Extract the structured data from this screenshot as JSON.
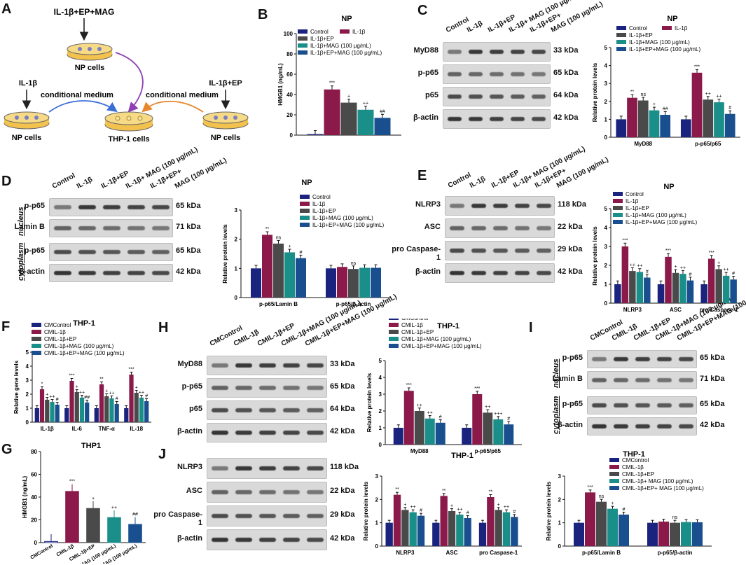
{
  "colors": {
    "control": "#1a237e",
    "il1b": "#8b1a4a",
    "ep": "#4a4a4a",
    "mag": "#1a8f8a",
    "epmag": "#1a4f8f"
  },
  "panels": {
    "A": "A",
    "B": "B",
    "C": "C",
    "D": "D",
    "E": "E",
    "F": "F",
    "G": "G",
    "H": "H",
    "I": "I",
    "J": "J"
  },
  "diagram": {
    "top_label": "IL-1β+EP+MAG",
    "top_cells": "NP cells",
    "left_label": "IL-1β",
    "right_label": "IL-1β+EP",
    "left_cells": "NP cells",
    "right_cells": "NP cells",
    "center_cells": "THP-1 cells",
    "cm_left": "conditional medium",
    "cm_right": "conditional medium"
  },
  "lanes_np": [
    "Control",
    "IL-1β",
    "IL-1β+EP",
    "IL-1β+ MAG (100 μg/mL)",
    "IL-1β+EP+",
    "MAG (100 μg/mL)"
  ],
  "lanes_thp": [
    "CMControl",
    "CMIL-1β",
    "CMIL-1β+EP",
    "CMIL-1β+MAG (100 μg/mL)",
    "CMIL-1β+EP+MAG (100 μg/mL)"
  ],
  "blots": {
    "C": [
      {
        "name": "MyD88",
        "kda": "33 kDa"
      },
      {
        "name": "p-p65",
        "kda": "65 kDa"
      },
      {
        "name": "p65",
        "kda": "64 kDa"
      },
      {
        "name": "β-actin",
        "kda": "42 kDa"
      }
    ],
    "D": [
      {
        "name": "p-p65",
        "kda": "65 kDa"
      },
      {
        "name": "Lamin B",
        "kda": "71 kDa"
      },
      {
        "name": "p-p65",
        "kda": "65 kDa"
      },
      {
        "name": "β-actin",
        "kda": "42 kDa"
      }
    ],
    "D_groups": [
      "nucleus",
      "cytoplasm"
    ],
    "E": [
      {
        "name": "NLRP3",
        "kda": "118 kDa"
      },
      {
        "name": "ASC",
        "kda": "22 kDa"
      },
      {
        "name": "pro Caspase-1",
        "kda": "29 kDa"
      },
      {
        "name": "β-actin",
        "kda": "42 kDa"
      }
    ],
    "H": [
      {
        "name": "MyD88",
        "kda": "33 kDa"
      },
      {
        "name": "p-p65",
        "kda": "65 kDa"
      },
      {
        "name": "p65",
        "kda": "64 kDa"
      },
      {
        "name": "β-actin",
        "kda": "42 kDa"
      }
    ],
    "I": [
      {
        "name": "p-p65",
        "kda": "65 kDa"
      },
      {
        "name": "Lamin B",
        "kda": "71 kDa"
      },
      {
        "name": "p-p65",
        "kda": "65 kDa"
      },
      {
        "name": "β-actin",
        "kda": "42 kDa"
      }
    ],
    "I_groups": [
      "nucleus",
      "cytoplasm"
    ],
    "J": [
      {
        "name": "NLRP3",
        "kda": "118 kDa"
      },
      {
        "name": "ASC",
        "kda": "22 kDa"
      },
      {
        "name": "pro Caspase-1",
        "kda": "29 kDa"
      },
      {
        "name": "β-actin",
        "kda": "42 kDa"
      }
    ]
  },
  "chart_data": [
    {
      "id": "B",
      "type": "bar",
      "title": "NP",
      "ylabel": "HMGB1 (ng/mL)",
      "ylim": [
        0,
        100
      ],
      "yticks": [
        0,
        20,
        40,
        60,
        80,
        100
      ],
      "categories": [
        ""
      ],
      "legend": [
        "Control",
        "IL-1β",
        "IL-1β+EP",
        "IL-1β+MAG (100 μg/mL)",
        "IL-1β+EP+MAG (100 μg/mL)"
      ],
      "series": [
        {
          "name": "Control",
          "values": [
            1
          ]
        },
        {
          "name": "IL-1β",
          "values": [
            45
          ]
        },
        {
          "name": "IL-1β+EP",
          "values": [
            32
          ]
        },
        {
          "name": "IL-1β+MAG (100 μg/mL)",
          "values": [
            25
          ]
        },
        {
          "name": "IL-1β+EP+MAG (100 μg/mL)",
          "values": [
            17
          ]
        }
      ],
      "annotations": [
        [
          "",
          "***",
          "+",
          "++",
          "##"
        ]
      ]
    },
    {
      "id": "C",
      "type": "bar",
      "title": "NP",
      "ylabel": "Relative protein levels",
      "ylim": [
        0,
        5
      ],
      "yticks": [
        0,
        1,
        2,
        3,
        4,
        5
      ],
      "categories": [
        "MyD88",
        "p-p65/p65"
      ],
      "legend": [
        "Control",
        "IL-1β",
        "IL-1β+EP",
        "IL-1β+MAG (100 μg/mL)",
        "IL-1β+EP+MAG (100 μg/mL)"
      ],
      "series": [
        {
          "name": "Control",
          "values": [
            1,
            1
          ]
        },
        {
          "name": "IL-1β",
          "values": [
            2.2,
            3.6
          ]
        },
        {
          "name": "IL-1β+EP",
          "values": [
            2.05,
            2.1
          ]
        },
        {
          "name": "IL-1β+MAG (100 μg/mL)",
          "values": [
            1.5,
            1.95
          ]
        },
        {
          "name": "IL-1β+EP+MAG (100 μg/mL)",
          "values": [
            1.25,
            1.3
          ]
        }
      ],
      "annotations": [
        [
          "",
          "**",
          "ns",
          "+",
          "##"
        ],
        [
          "",
          "***",
          "++",
          "++",
          "#"
        ]
      ]
    },
    {
      "id": "D",
      "type": "bar",
      "title": "NP",
      "ylabel": "Relative protein levels",
      "ylim": [
        0,
        3
      ],
      "yticks": [
        0,
        1,
        2,
        3
      ],
      "categories": [
        "p-p65/Lamin B",
        "p-p65/β-actin"
      ],
      "legend": [
        "Control",
        "IL-1β",
        "IL-1β+EP",
        "IL-1β+MAG (100 μg/mL)",
        "IL-1β+EP+MAG (100 μg/mL)"
      ],
      "series": [
        {
          "name": "Control",
          "values": [
            1,
            1
          ]
        },
        {
          "name": "IL-1β",
          "values": [
            2.15,
            1.05
          ]
        },
        {
          "name": "IL-1β+EP",
          "values": [
            1.85,
            0.98
          ]
        },
        {
          "name": "IL-1β+MAG (100 μg/mL)",
          "values": [
            1.55,
            1.02
          ]
        },
        {
          "name": "IL-1β+EP+MAG (100 μg/mL)",
          "values": [
            1.35,
            1.02
          ]
        }
      ],
      "annotations": [
        [
          "",
          "**",
          "ns",
          "+",
          "#"
        ],
        [
          "",
          "",
          "ns",
          "",
          ""
        ]
      ]
    },
    {
      "id": "E",
      "type": "bar",
      "title": "NP",
      "ylabel": "Relative protein levels",
      "ylim": [
        0,
        5
      ],
      "yticks": [
        0,
        1,
        2,
        3,
        4,
        5
      ],
      "categories": [
        "NLRP3",
        "ASC",
        "pro Caspase-1"
      ],
      "legend": [
        "Control",
        "IL-1β",
        "IL-1β+EP",
        "IL-1β+MAG (100 μg/mL)",
        "IL-1β+EP+MAG (100 μg/mL)"
      ],
      "series": [
        {
          "name": "Control",
          "values": [
            1,
            1,
            1
          ]
        },
        {
          "name": "IL-1β",
          "values": [
            3.0,
            2.45,
            2.35
          ]
        },
        {
          "name": "IL-1β+EP",
          "values": [
            1.7,
            1.6,
            1.8
          ]
        },
        {
          "name": "IL-1β+MAG (100 μg/mL)",
          "values": [
            1.65,
            1.55,
            1.45
          ]
        },
        {
          "name": "IL-1β+EP+MAG (100 μg/mL)",
          "values": [
            1.35,
            1.2,
            1.25
          ]
        }
      ],
      "annotations": [
        [
          "",
          "***",
          "++",
          "++",
          "#"
        ],
        [
          "",
          "***",
          "+",
          "++",
          "#"
        ],
        [
          "",
          "***",
          "+",
          "++",
          "#"
        ]
      ]
    },
    {
      "id": "F",
      "type": "bar",
      "title": "THP-1",
      "ylabel": "Relative gene levels",
      "ylim": [
        0,
        5
      ],
      "yticks": [
        0,
        1,
        2,
        3,
        4,
        5
      ],
      "categories": [
        "IL-1β",
        "IL-6",
        "TNF-α",
        "IL-18"
      ],
      "legend": [
        "CMControl",
        "CMIL-1β",
        "CMIL-1β+EP",
        "CMIL-1β+MAG (100 μg/mL)",
        "CMIL-1β+EP+MAG (100 μg/mL)"
      ],
      "series": [
        {
          "name": "CMControl",
          "values": [
            1,
            1,
            1,
            1
          ]
        },
        {
          "name": "CMIL-1β",
          "values": [
            2.35,
            2.95,
            2.7,
            3.4
          ]
        },
        {
          "name": "CMIL-1β+EP",
          "values": [
            1.6,
            2.15,
            1.85,
            2.1
          ]
        },
        {
          "name": "CMIL-1β+MAG (100 μg/mL)",
          "values": [
            1.45,
            1.75,
            1.7,
            1.75
          ]
        },
        {
          "name": "CMIL-1β+EP+MAG (100 μg/mL)",
          "values": [
            1.25,
            1.4,
            1.3,
            1.5
          ]
        }
      ],
      "annotations": [
        [
          "",
          "*",
          "+",
          "++",
          "#"
        ],
        [
          "",
          "***",
          "+",
          "++",
          "##"
        ],
        [
          "",
          "**",
          "+",
          "++",
          "#"
        ],
        [
          "",
          "***",
          "+",
          "++",
          "#"
        ]
      ]
    },
    {
      "id": "G",
      "type": "bar",
      "title": "THP1",
      "ylabel": "HMGB1 (ng/mL)",
      "ylim": [
        0,
        80
      ],
      "yticks": [
        0,
        20,
        40,
        60,
        80
      ],
      "categories": [
        "CMControl",
        "CMIL-1β",
        "CMIL-1β+EP",
        "CMIL-1β+MAG (100 μg/mL)",
        "CMIL-1β+EP+MAG (100 μg/mL)"
      ],
      "values": [
        1,
        45,
        30,
        22,
        16
      ],
      "annotations": [
        "",
        "***",
        "+",
        "++",
        "##"
      ]
    },
    {
      "id": "H",
      "type": "bar",
      "title": "THP-1",
      "ylabel": "Relative protein levels",
      "ylim": [
        0,
        5
      ],
      "yticks": [
        0,
        1,
        2,
        3,
        4,
        5
      ],
      "categories": [
        "MyD88",
        "p-p65/p65"
      ],
      "legend": [
        "CMControl",
        "CMIL-1β",
        "CMIL-1β+EP",
        "CMIL-1β+MAG (100 μg/mL)",
        "CMIL-1β+EP+MAG (100 μg/mL)"
      ],
      "series": [
        {
          "name": "CMControl",
          "values": [
            1,
            1
          ]
        },
        {
          "name": "CMIL-1β",
          "values": [
            3.2,
            3.0
          ]
        },
        {
          "name": "CMIL-1β+EP",
          "values": [
            2.0,
            1.9
          ]
        },
        {
          "name": "CMIL-1β+MAG (100 μg/mL)",
          "values": [
            1.55,
            1.5
          ]
        },
        {
          "name": "CMIL-1β+EP+MAG (100 μg/mL)",
          "values": [
            1.3,
            1.2
          ]
        }
      ],
      "annotations": [
        [
          "",
          "***",
          "++",
          "++",
          "#"
        ],
        [
          "",
          "***",
          "++",
          "+++",
          "#"
        ]
      ]
    },
    {
      "id": "I",
      "type": "bar",
      "title": "THP-1",
      "ylabel": "Relative protein levels",
      "ylim": [
        0,
        3
      ],
      "yticks": [
        0,
        1,
        2,
        3
      ],
      "categories": [
        "p-p65/Lamin B",
        "p-p65/β-actin"
      ],
      "legend": [
        "CMControl",
        "CMIL-1β",
        "CMIL-1β+EP",
        "CMIL-1β+ MAG (100 μg/mL)",
        "CMIL-1β+EP+ MAG (100 μg/mL)"
      ],
      "series": [
        {
          "name": "CMControl",
          "values": [
            1,
            1
          ]
        },
        {
          "name": "CMIL-1β",
          "values": [
            2.3,
            1.05
          ]
        },
        {
          "name": "CMIL-1β+EP",
          "values": [
            1.9,
            1.0
          ]
        },
        {
          "name": "CMIL-1β+ MAG (100 μg/mL)",
          "values": [
            1.6,
            1.03
          ]
        },
        {
          "name": "CMIL-1β+EP+ MAG (100 μg/mL)",
          "values": [
            1.35,
            1.02
          ]
        }
      ],
      "annotations": [
        [
          "",
          "***",
          "ns",
          "+",
          "#"
        ],
        [
          "",
          "",
          "ns",
          "",
          ""
        ]
      ]
    },
    {
      "id": "J",
      "type": "bar",
      "title": "THP-1",
      "ylabel": "Relative protein levels",
      "ylim": [
        0,
        3
      ],
      "yticks": [
        0,
        1,
        2,
        3
      ],
      "categories": [
        "NLRP3",
        "ASC",
        "pro Caspase-1"
      ],
      "legend": [],
      "series": [
        {
          "name": "CMControl",
          "values": [
            1,
            1,
            1
          ]
        },
        {
          "name": "CMIL-1β",
          "values": [
            2.2,
            2.15,
            2.1
          ]
        },
        {
          "name": "CMIL-1β+EP",
          "values": [
            1.55,
            1.5,
            1.55
          ]
        },
        {
          "name": "CMIL-1β+MAG (100 μg/mL)",
          "values": [
            1.45,
            1.35,
            1.45
          ]
        },
        {
          "name": "CMIL-1β+EP+MAG (100 μg/mL)",
          "values": [
            1.3,
            1.2,
            1.25
          ]
        }
      ],
      "annotations": [
        [
          "",
          "**",
          "+",
          "++",
          "#"
        ],
        [
          "",
          "**",
          "+",
          "++",
          "#"
        ],
        [
          "",
          "**",
          "+",
          "++",
          "#"
        ]
      ]
    }
  ]
}
